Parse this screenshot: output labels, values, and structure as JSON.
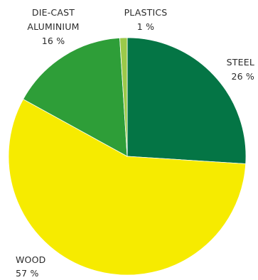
{
  "chart_data": {
    "type": "pie",
    "title": "",
    "start_angle_deg": 0,
    "direction": "clockwise",
    "slices": [
      {
        "name": "STEEL",
        "value": 26,
        "value_label": "26 %",
        "color": "#047545"
      },
      {
        "name": "WOOD",
        "value": 57,
        "value_label": "57 %",
        "color": "#f6eb00"
      },
      {
        "name": "DIE-CAST ALUMINIUM",
        "name_lines": [
          "DIE-CAST",
          "ALUMINIUM"
        ],
        "value": 16,
        "value_label": "16 %",
        "color": "#2e9e38"
      },
      {
        "name": "PLASTICS",
        "value": 1,
        "value_label": "1 %",
        "color": "#9cc94a"
      }
    ]
  }
}
